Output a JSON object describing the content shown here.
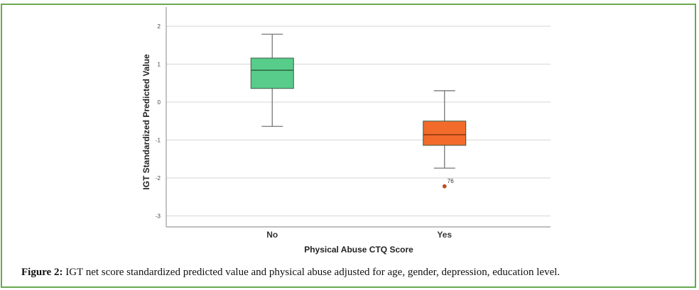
{
  "caption": {
    "label": "Figure 2:",
    "text": " IGT net score standardized predicted value and physical abuse adjusted for age, gender, depression, education level."
  },
  "colors": {
    "frame": "#6aa84f",
    "no_box": "#58cc8a",
    "yes_box": "#f26b2a",
    "outlier": "#c8501e"
  },
  "chart_data": {
    "type": "boxplot",
    "title": "",
    "xlabel": "Physical Abuse CTQ Score",
    "ylabel": "IGT Standardized Predicted Value",
    "ylim": [
      -3.3,
      2.5
    ],
    "yticks": [
      2,
      1,
      0,
      -1,
      -2,
      -3
    ],
    "grid": true,
    "categories": [
      "No",
      "Yes"
    ],
    "series": [
      {
        "name": "No",
        "whisker_high": 1.79,
        "q3": 1.16,
        "median": 0.84,
        "q1": 0.36,
        "whisker_low": -0.64,
        "outliers": [],
        "color": "#58cc8a"
      },
      {
        "name": "Yes",
        "whisker_high": 0.3,
        "q3": -0.5,
        "median": -0.86,
        "q1": -1.14,
        "whisker_low": -1.74,
        "outliers": [
          {
            "value": -2.22,
            "label": "76"
          }
        ],
        "color": "#f26b2a"
      }
    ]
  }
}
